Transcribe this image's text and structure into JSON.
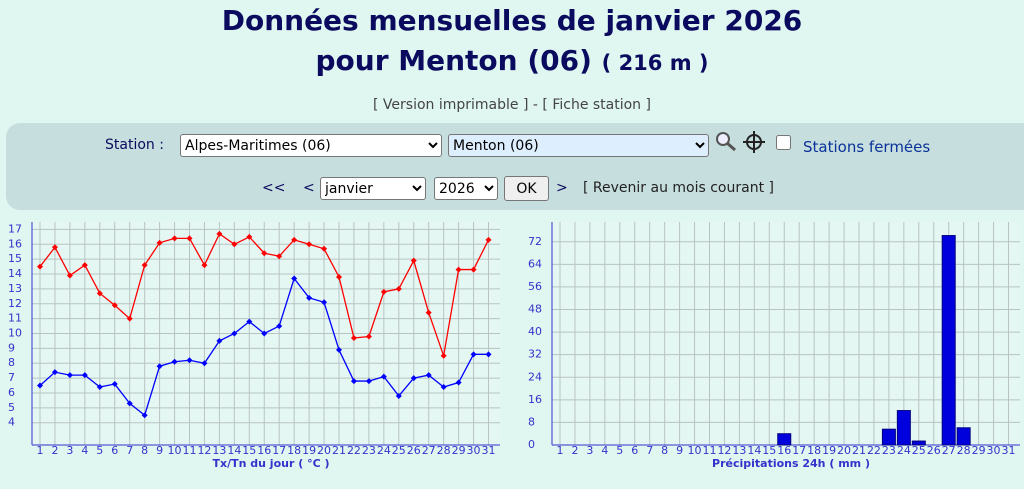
{
  "header": {
    "title": "Données mensuelles de janvier 2026",
    "subtitle": "pour Menton (06)",
    "altitude": "( 216 m )"
  },
  "links": [
    "[ Version imprimable ]",
    "-",
    "[ Fiche station ]"
  ],
  "form": {
    "station_label": "Station :",
    "department": "Alpes-Maritimes (06)",
    "station": "Menton (06)",
    "closed_label": "Stations fermées",
    "first": "<<",
    "prev": "<",
    "month": "janvier",
    "year": "2026",
    "ok": "OK",
    "next": ">",
    "current": "[ Revenir au mois courant ]"
  },
  "chart_data": [
    {
      "type": "line",
      "x_label": "Tx/Tn du jour ( °C )",
      "categories": [
        "1",
        "2",
        "3",
        "4",
        "5",
        "6",
        "7",
        "8",
        "9",
        "10",
        "11",
        "12",
        "13",
        "14",
        "15",
        "16",
        "17",
        "18",
        "19",
        "20",
        "21",
        "22",
        "23",
        "24",
        "25",
        "26",
        "27",
        "28",
        "29",
        "30",
        "31"
      ],
      "series": [
        {
          "color": "#ff0000",
          "values": [
            14.5,
            15.8,
            13.9,
            14.6,
            12.7,
            11.9,
            11.0,
            14.6,
            16.1,
            16.4,
            16.4,
            14.6,
            16.7,
            16.0,
            16.5,
            15.4,
            15.2,
            16.3,
            16.0,
            15.7,
            13.8,
            9.7,
            9.8,
            12.8,
            13.0,
            14.9,
            11.4,
            8.5,
            14.3,
            14.3,
            16.3
          ]
        },
        {
          "color": "#0000ff",
          "values": [
            6.5,
            7.4,
            7.2,
            7.2,
            6.4,
            6.6,
            5.3,
            4.5,
            7.8,
            8.1,
            8.2,
            8.0,
            9.5,
            10.0,
            10.8,
            10.0,
            10.5,
            13.7,
            12.4,
            12.1,
            8.9,
            6.8,
            6.8,
            7.1,
            5.8,
            7.0,
            7.2,
            6.4,
            6.7,
            8.6,
            8.6
          ]
        }
      ],
      "ylim": [
        2.5,
        17.5
      ],
      "yticks": [
        4,
        5,
        6,
        7,
        8,
        9,
        10,
        11,
        12,
        13,
        14,
        15,
        16,
        17
      ],
      "grid": true
    },
    {
      "type": "bar",
      "x_label": "Précipitations 24h ( mm )",
      "categories": [
        "1",
        "2",
        "3",
        "4",
        "5",
        "6",
        "7",
        "8",
        "9",
        "10",
        "11",
        "12",
        "13",
        "14",
        "15",
        "16",
        "17",
        "18",
        "19",
        "20",
        "21",
        "22",
        "23",
        "24",
        "25",
        "26",
        "27",
        "28",
        "29",
        "30",
        "31"
      ],
      "values": [
        0,
        0,
        0,
        0,
        0,
        0,
        0,
        0,
        0,
        0,
        0,
        0,
        0,
        0,
        0,
        4,
        0,
        0,
        0,
        0,
        0,
        0,
        5.6,
        12.2,
        1.4,
        0,
        74.2,
        6.1,
        0,
        0,
        0
      ],
      "color": "#0000dd",
      "ylim": [
        0,
        79
      ],
      "yticks": [
        0,
        8,
        16,
        24,
        32,
        40,
        48,
        56,
        64,
        72
      ],
      "grid": true
    }
  ]
}
